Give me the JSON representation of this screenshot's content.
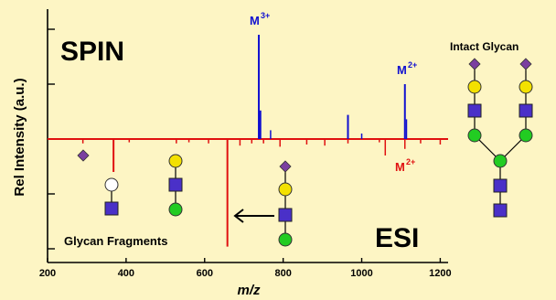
{
  "chart_data": {
    "type": "bar",
    "xlabel": "m/z",
    "ylabel": "Rel Intensity (a.u.)",
    "xlim": [
      200,
      1220
    ],
    "ylim": [
      -1.0,
      1.0
    ],
    "x_ticks": [
      "200",
      "400",
      "600",
      "800",
      "1000",
      "1200"
    ],
    "panel_labels": {
      "top": "SPIN",
      "bottom": "ESI"
    },
    "annotations": {
      "m3_spin": "M",
      "m3_sup": "3+",
      "m2_spin": "M",
      "m2_spin_sup": "2+",
      "m2_esi": "M",
      "m2_esi_sup": "2+",
      "intact_glycan": "Intact Glycan",
      "glycan_fragments": "Glycan Fragments"
    },
    "colors": {
      "spin": "#1010d0",
      "esi": "#e01010",
      "background": "#fdf5c4"
    },
    "series": [
      {
        "x": [
          738,
          742,
          768,
          965,
          1000,
          1110,
          1114
        ],
        "y": [
          0.95,
          0.26,
          0.08,
          0.22,
          0.05,
          0.5,
          0.18
        ]
      },
      {
        "x": [
          290,
          368,
          408,
          528,
          560,
          610,
          658,
          690,
          720,
          750,
          792,
          860,
          906,
          965,
          1045,
          1060,
          1110,
          1150,
          1200
        ],
        "y": [
          -0.04,
          -0.3,
          -0.03,
          -0.04,
          -0.03,
          -0.04,
          -0.98,
          -0.06,
          -0.04,
          -0.04,
          -0.07,
          -0.05,
          -0.06,
          -0.04,
          -0.03,
          -0.15,
          -0.09,
          -0.04,
          -0.05
        ]
      }
    ]
  },
  "icons": [
    "sialic-acid-diamond-icon",
    "galactose-circle-icon",
    "glcnac-square-icon",
    "mannose-circle-icon",
    "arrow-left-icon"
  ]
}
